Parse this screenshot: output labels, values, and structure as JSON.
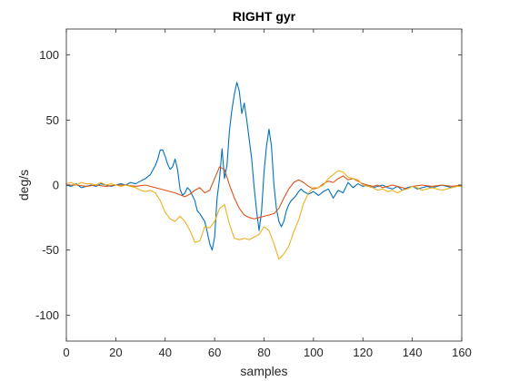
{
  "chart_data": {
    "type": "line",
    "title": "RIGHT gyr",
    "xlabel": "samples",
    "ylabel": "deg/s",
    "xlim": [
      0,
      160
    ],
    "ylim": [
      -120,
      120
    ],
    "xticks": [
      0,
      20,
      40,
      60,
      80,
      100,
      120,
      140,
      160
    ],
    "yticks": [
      -100,
      -50,
      0,
      50,
      100
    ],
    "grid": false,
    "box": true,
    "legend": "none",
    "series": [
      {
        "color": "#0072BD",
        "x": [
          0,
          2,
          4,
          6,
          8,
          10,
          12,
          14,
          16,
          18,
          20,
          22,
          24,
          26,
          28,
          30,
          32,
          34,
          36,
          37,
          38,
          39,
          40,
          41,
          42,
          43,
          44,
          45,
          46,
          47,
          48,
          49,
          50,
          51,
          52,
          53,
          54,
          55,
          56,
          57,
          58,
          59,
          60,
          61,
          62,
          63,
          64,
          65,
          66,
          67,
          68,
          69,
          70,
          71,
          72,
          73,
          74,
          75,
          76,
          77,
          78,
          79,
          80,
          81,
          82,
          83,
          84,
          85,
          86,
          87,
          88,
          89,
          90,
          91,
          92,
          93,
          94,
          95,
          96,
          97,
          98,
          99,
          100,
          102,
          104,
          106,
          108,
          110,
          112,
          114,
          116,
          118,
          120,
          122,
          124,
          126,
          128,
          130,
          132,
          134,
          136,
          138,
          140,
          142,
          144,
          146,
          148,
          150,
          152,
          154,
          156,
          158,
          160
        ],
        "y": [
          0,
          -1,
          1,
          -2,
          -1,
          0,
          -1,
          1,
          0,
          -1,
          0,
          1,
          0,
          2,
          1,
          3,
          5,
          8,
          15,
          20,
          27,
          27,
          22,
          16,
          12,
          14,
          20,
          12,
          -3,
          -8,
          -6,
          -2,
          -4,
          -8,
          -12,
          -20,
          -22,
          -25,
          -28,
          -36,
          -45,
          -50,
          -40,
          -10,
          5,
          28,
          5,
          15,
          42,
          58,
          70,
          79,
          72,
          55,
          63,
          50,
          35,
          20,
          -2,
          -20,
          -35,
          -20,
          10,
          30,
          43,
          30,
          0,
          -18,
          -28,
          -32,
          -28,
          -20,
          -15,
          -12,
          -10,
          -8,
          -5,
          -3,
          -5,
          -6,
          -7,
          -6,
          -5,
          -8,
          -5,
          -3,
          -10,
          -4,
          -6,
          2,
          -2,
          1,
          -1,
          0,
          -2,
          -1,
          0,
          -2,
          -3,
          -1,
          -4,
          -2,
          -1,
          -3,
          -2,
          -1,
          -2,
          -1,
          0,
          -1,
          -2,
          -1,
          -1
        ]
      },
      {
        "color": "#D95319",
        "x": [
          0,
          4,
          8,
          12,
          16,
          20,
          24,
          28,
          32,
          36,
          40,
          44,
          48,
          50,
          52,
          54,
          56,
          58,
          60,
          62,
          64,
          66,
          68,
          70,
          72,
          74,
          76,
          78,
          80,
          82,
          84,
          86,
          88,
          90,
          92,
          94,
          96,
          98,
          100,
          102,
          104,
          106,
          108,
          110,
          112,
          114,
          116,
          118,
          120,
          122,
          124,
          126,
          128,
          130,
          132,
          134,
          136,
          138,
          140,
          144,
          148,
          152,
          156,
          160
        ],
        "y": [
          0,
          0,
          -1,
          0,
          -1,
          0,
          0,
          -1,
          0,
          -2,
          -4,
          -6,
          -9,
          -7,
          -4,
          -2,
          -6,
          -4,
          5,
          14,
          12,
          0,
          -10,
          -18,
          -23,
          -25,
          -26,
          -25,
          -24,
          -23,
          -22,
          -18,
          -10,
          -3,
          2,
          4,
          2,
          -1,
          -3,
          -2,
          1,
          3,
          2,
          5,
          7,
          4,
          5,
          3,
          1,
          0,
          -1,
          0,
          -2,
          -1,
          0,
          -1,
          -2,
          -3,
          -1,
          0,
          -1,
          0,
          -1,
          0
        ]
      },
      {
        "color": "#EDB120",
        "x": [
          0,
          2,
          4,
          6,
          8,
          10,
          12,
          14,
          16,
          18,
          20,
          22,
          24,
          26,
          28,
          30,
          32,
          34,
          36,
          38,
          40,
          42,
          44,
          46,
          48,
          50,
          52,
          54,
          56,
          58,
          60,
          62,
          64,
          66,
          68,
          70,
          72,
          74,
          76,
          78,
          80,
          82,
          84,
          86,
          88,
          90,
          92,
          94,
          96,
          98,
          100,
          102,
          104,
          106,
          108,
          110,
          112,
          114,
          116,
          118,
          120,
          122,
          124,
          126,
          128,
          130,
          132,
          134,
          136,
          138,
          140,
          142,
          144,
          146,
          148,
          150,
          152,
          154,
          156,
          158,
          160
        ],
        "y": [
          1,
          2,
          0,
          2,
          1,
          1,
          0,
          2,
          0,
          1,
          0,
          -1,
          0,
          -1,
          -2,
          -4,
          -5,
          -4,
          -6,
          -12,
          -21,
          -26,
          -28,
          -24,
          -28,
          -35,
          -44,
          -43,
          -32,
          -33,
          -28,
          -18,
          -15,
          -30,
          -41,
          -42,
          -41,
          -42,
          -40,
          -38,
          -32,
          -35,
          -45,
          -57,
          -53,
          -47,
          -36,
          -27,
          -14,
          -6,
          -2,
          -2,
          0,
          5,
          8,
          11,
          10,
          6,
          5,
          4,
          0,
          -1,
          -2,
          -4,
          -3,
          -5,
          -4,
          -6,
          -4,
          -3,
          -1,
          -2,
          -4,
          -3,
          -2,
          -3,
          -4,
          -3,
          -2,
          -1,
          -1
        ]
      }
    ]
  }
}
